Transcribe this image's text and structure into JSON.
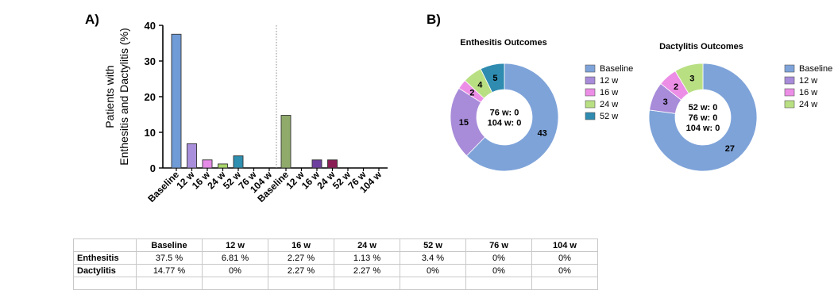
{
  "panels": {
    "a_label": "A)",
    "b_label": "B)"
  },
  "chart_data": [
    {
      "type": "bar",
      "ylabel_line1": "Patients with",
      "ylabel_line2": "Enthesitis and Dactylitis (%)",
      "ylim": [
        0,
        40
      ],
      "yticks": [
        "0",
        "10",
        "20",
        "30",
        "40"
      ],
      "grid": false,
      "series": [
        {
          "categories": [
            "Baseline",
            "12 w",
            "16 w",
            "24 w",
            "52 w",
            "76 w",
            "104 w"
          ],
          "values": [
            37.5,
            6.81,
            2.27,
            1.13,
            3.4,
            0,
            0
          ],
          "colors": [
            "#6f9bd6",
            "#a98fdb",
            "#e58ae6",
            "#a9d66a",
            "#2e8fb0",
            "#ffffff",
            "#ffffff"
          ]
        },
        {
          "categories": [
            "Baseline",
            "12 w",
            "16 w",
            "24 w",
            "52 w",
            "76 w",
            "104 w"
          ],
          "values": [
            14.77,
            0,
            2.27,
            2.27,
            0,
            0,
            0
          ],
          "colors": [
            "#8faa6a",
            "#ffffff",
            "#6d3f9e",
            "#8a1f55",
            "#ffffff",
            "#ffffff",
            "#ffffff"
          ]
        }
      ]
    },
    {
      "type": "pie",
      "title": "Enthesitis Outcomes",
      "slices": [
        {
          "label": "Baseline",
          "value": 43,
          "color": "#7ea3d9"
        },
        {
          "label": "12 w",
          "value": 15,
          "color": "#a88bd9"
        },
        {
          "label": "16 w",
          "value": 2,
          "color": "#ec8ee6"
        },
        {
          "label": "24 w",
          "value": 4,
          "color": "#b9df83"
        },
        {
          "label": "52 w",
          "value": 5,
          "color": "#2f8bb0"
        }
      ],
      "center_lines": [
        "76 w: 0",
        "104 w: 0"
      ],
      "legend": [
        "Baseline",
        "12 w",
        "16 w",
        "24 w",
        "52 w"
      ]
    },
    {
      "type": "pie",
      "title": "Dactylitis Outcomes",
      "slices": [
        {
          "label": "Baseline",
          "value": 27,
          "color": "#7ea3d9"
        },
        {
          "label": "12 w",
          "value": 3,
          "color": "#a88bd9"
        },
        {
          "label": "16 w",
          "value": 2,
          "color": "#ec8ee6"
        },
        {
          "label": "24 w",
          "value": 3,
          "color": "#b9df83"
        }
      ],
      "center_lines": [
        "52 w: 0",
        "76 w: 0",
        "104 w: 0"
      ],
      "legend": [
        "Baseline",
        "12 w",
        "16 w",
        "24 w"
      ]
    },
    {
      "type": "table",
      "header": [
        "",
        "Baseline",
        "12 w",
        "16 w",
        "24 w",
        "52 w",
        "76 w",
        "104 w"
      ],
      "rows": [
        {
          "label": "Enthesitis",
          "cells": [
            "37.5 %",
            "6.81 %",
            "2.27 %",
            "1.13 %",
            "3.4 %",
            "0%",
            "0%"
          ]
        },
        {
          "label": "Dactylitis",
          "cells": [
            "14.77 %",
            "0%",
            "2.27 %",
            "2.27 %",
            "0%",
            "0%",
            "0%"
          ]
        },
        {
          "label": "",
          "cells": [
            "",
            "",
            "",
            "",
            "",
            "",
            ""
          ]
        }
      ]
    }
  ]
}
